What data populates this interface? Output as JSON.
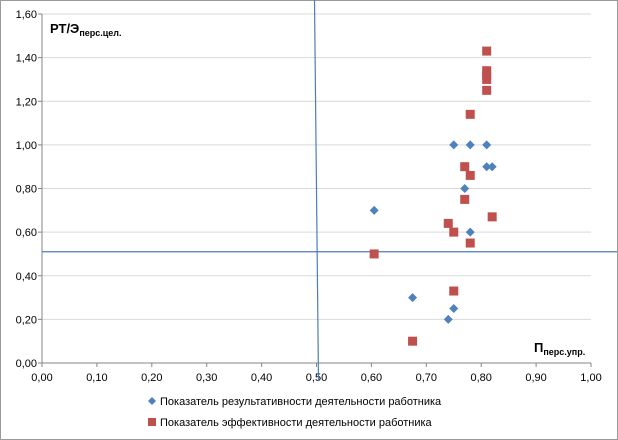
{
  "chart_data": {
    "type": "scatter",
    "xlim": [
      0,
      1
    ],
    "ylim": [
      0,
      1.6
    ],
    "x_ticks": [
      "0,00",
      "0,10",
      "0,20",
      "0,30",
      "0,40",
      "0,50",
      "0,60",
      "0,70",
      "0,80",
      "0,90",
      "1,00"
    ],
    "y_ticks": [
      "0,00",
      "0,20",
      "0,40",
      "0,60",
      "0,80",
      "1,00",
      "1,20",
      "1,40",
      "1,60"
    ],
    "x_tick_values": [
      0,
      0.1,
      0.2,
      0.3,
      0.4,
      0.5,
      0.6,
      0.7,
      0.8,
      0.9,
      1.0
    ],
    "y_tick_values": [
      0,
      0.2,
      0.4,
      0.6,
      0.8,
      1.0,
      1.2,
      1.4,
      1.6
    ],
    "ylabel_main": "РТ/Э",
    "ylabel_sub": "перс.цел.",
    "xlabel_main": "П",
    "xlabel_sub": "перс.упр.",
    "reference_lines": {
      "x": 0.5,
      "y": 0.51
    },
    "series": [
      {
        "name": "Показатель результативности деятельности работника",
        "marker": "diamond",
        "color": "#4f81bd",
        "points": [
          [
            0.605,
            0.7
          ],
          [
            0.675,
            0.3
          ],
          [
            0.74,
            0.2
          ],
          [
            0.75,
            0.25
          ],
          [
            0.75,
            1.0
          ],
          [
            0.77,
            0.8
          ],
          [
            0.78,
            1.0
          ],
          [
            0.78,
            0.6
          ],
          [
            0.81,
            1.0
          ],
          [
            0.81,
            0.9
          ],
          [
            0.82,
            0.9
          ]
        ]
      },
      {
        "name": "Показатель эффективности деятельности работника",
        "marker": "square",
        "color": "#c0504d",
        "points": [
          [
            0.605,
            0.5
          ],
          [
            0.675,
            0.1
          ],
          [
            0.74,
            0.64
          ],
          [
            0.75,
            0.6
          ],
          [
            0.75,
            0.33
          ],
          [
            0.77,
            0.9
          ],
          [
            0.77,
            0.75
          ],
          [
            0.78,
            1.14
          ],
          [
            0.78,
            0.86
          ],
          [
            0.78,
            0.55
          ],
          [
            0.81,
            1.43
          ],
          [
            0.81,
            1.34
          ],
          [
            0.81,
            1.32
          ],
          [
            0.81,
            1.3
          ],
          [
            0.81,
            1.25
          ],
          [
            0.82,
            0.67
          ]
        ]
      }
    ]
  }
}
